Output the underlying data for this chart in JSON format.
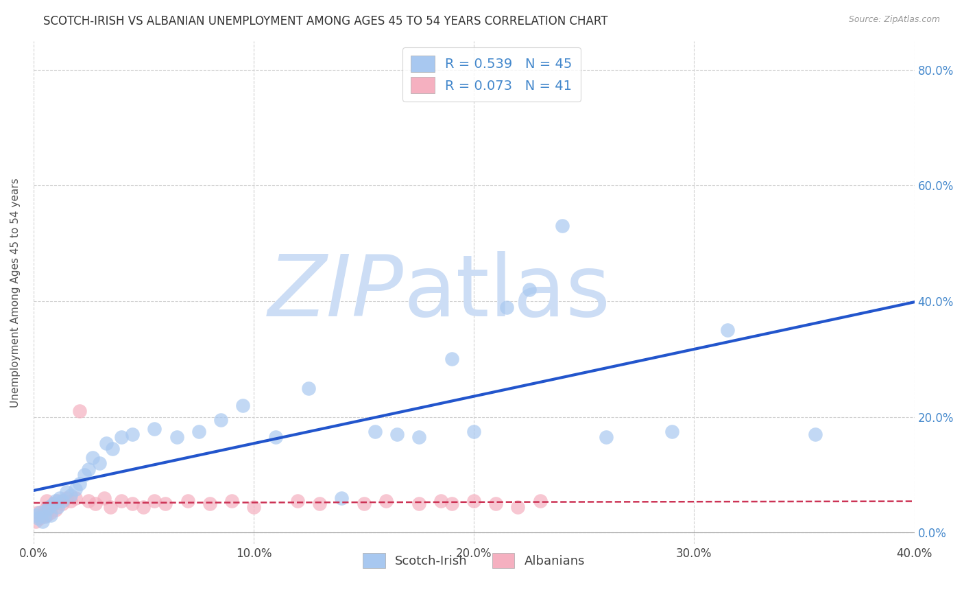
{
  "title": "SCOTCH-IRISH VS ALBANIAN UNEMPLOYMENT AMONG AGES 45 TO 54 YEARS CORRELATION CHART",
  "source": "Source: ZipAtlas.com",
  "ylabel": "Unemployment Among Ages 45 to 54 years",
  "xlim": [
    0.0,
    0.4
  ],
  "ylim": [
    -0.02,
    0.85
  ],
  "xticks": [
    0.0,
    0.1,
    0.2,
    0.3,
    0.4
  ],
  "yticks_right": [
    0.0,
    0.2,
    0.4,
    0.6,
    0.8
  ],
  "background_color": "#ffffff",
  "grid_color": "#d0d0d0",
  "scotch_irish_color": "#a8c8f0",
  "albanian_color": "#f5b0c0",
  "scotch_irish_line_color": "#2255cc",
  "albanian_line_color": "#cc3355",
  "scotch_irish_R": 0.539,
  "scotch_irish_N": 45,
  "albanian_R": 0.073,
  "albanian_N": 41,
  "legend_label_scotch": "Scotch-Irish",
  "legend_label_albanian": "Albanians",
  "scotch_irish_x": [
    0.001,
    0.002,
    0.003,
    0.004,
    0.005,
    0.006,
    0.007,
    0.008,
    0.009,
    0.01,
    0.011,
    0.012,
    0.013,
    0.015,
    0.017,
    0.019,
    0.021,
    0.023,
    0.025,
    0.027,
    0.03,
    0.033,
    0.036,
    0.04,
    0.045,
    0.055,
    0.065,
    0.075,
    0.085,
    0.095,
    0.11,
    0.125,
    0.14,
    0.155,
    0.165,
    0.175,
    0.19,
    0.2,
    0.215,
    0.225,
    0.24,
    0.26,
    0.29,
    0.315,
    0.355
  ],
  "scotch_irish_y": [
    0.03,
    0.025,
    0.035,
    0.02,
    0.028,
    0.04,
    0.045,
    0.03,
    0.05,
    0.055,
    0.045,
    0.06,
    0.055,
    0.07,
    0.065,
    0.075,
    0.085,
    0.1,
    0.11,
    0.13,
    0.12,
    0.155,
    0.145,
    0.165,
    0.17,
    0.18,
    0.165,
    0.175,
    0.195,
    0.22,
    0.165,
    0.25,
    0.06,
    0.175,
    0.17,
    0.165,
    0.3,
    0.175,
    0.39,
    0.42,
    0.53,
    0.165,
    0.175,
    0.35,
    0.17
  ],
  "albanian_x": [
    0.001,
    0.002,
    0.003,
    0.004,
    0.005,
    0.006,
    0.006,
    0.007,
    0.008,
    0.009,
    0.01,
    0.011,
    0.013,
    0.015,
    0.017,
    0.019,
    0.021,
    0.025,
    0.028,
    0.032,
    0.035,
    0.04,
    0.045,
    0.05,
    0.055,
    0.06,
    0.07,
    0.08,
    0.09,
    0.1,
    0.12,
    0.13,
    0.15,
    0.16,
    0.175,
    0.185,
    0.19,
    0.2,
    0.21,
    0.22,
    0.23
  ],
  "albanian_y": [
    0.02,
    0.035,
    0.025,
    0.03,
    0.04,
    0.03,
    0.055,
    0.045,
    0.035,
    0.05,
    0.04,
    0.055,
    0.05,
    0.06,
    0.055,
    0.06,
    0.21,
    0.055,
    0.05,
    0.06,
    0.045,
    0.055,
    0.05,
    0.045,
    0.055,
    0.05,
    0.055,
    0.05,
    0.055,
    0.045,
    0.055,
    0.05,
    0.05,
    0.055,
    0.05,
    0.055,
    0.05,
    0.055,
    0.05,
    0.045,
    0.055
  ],
  "watermark_zip": "ZIP",
  "watermark_atlas": "atlas",
  "watermark_color_zip": "#ccddf5",
  "watermark_color_atlas": "#ccddf5",
  "watermark_fontsize": 90
}
